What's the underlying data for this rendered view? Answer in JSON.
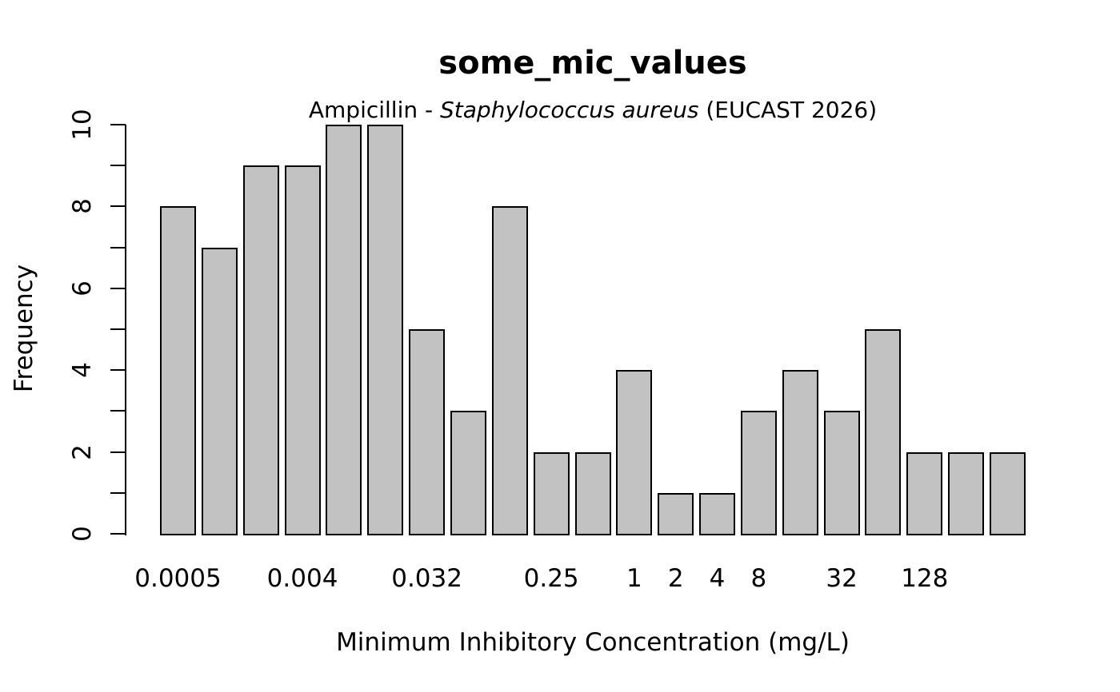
{
  "figure": {
    "title": "some_mic_values",
    "subtitle": {
      "prefix": "Ampicillin - ",
      "italic": "Staphylococcus aureus",
      "suffix": " (EUCAST 2026)"
    },
    "xlabel": "Minimum Inhibitory Concentration (mg/L)",
    "ylabel": "Frequency"
  },
  "chart_data": {
    "type": "bar",
    "title": "some_mic_values",
    "subtitle": "Ampicillin - Staphylococcus aureus (EUCAST 2026)",
    "xlabel": "Minimum Inhibitory Concentration (mg/L)",
    "ylabel": "Frequency",
    "ylim": [
      0,
      10
    ],
    "y_major_ticks": [
      0,
      2,
      4,
      6,
      8,
      10
    ],
    "y_minor_tick_step": 1,
    "grid": false,
    "legend": false,
    "categories": [
      "0.0005",
      "",
      "",
      "0.004",
      "",
      "",
      "0.032",
      "",
      "",
      "0.25",
      "",
      "1",
      "2",
      "4",
      "8",
      "",
      "32",
      "",
      "128",
      "",
      ""
    ],
    "values": [
      8,
      7,
      9,
      9,
      10,
      10,
      5,
      3,
      8,
      2,
      2,
      4,
      1,
      1,
      3,
      4,
      3,
      5,
      2,
      2,
      2
    ],
    "bar_fill": "#c2c2c2",
    "bar_border": "#000000",
    "background": "#ffffff"
  }
}
